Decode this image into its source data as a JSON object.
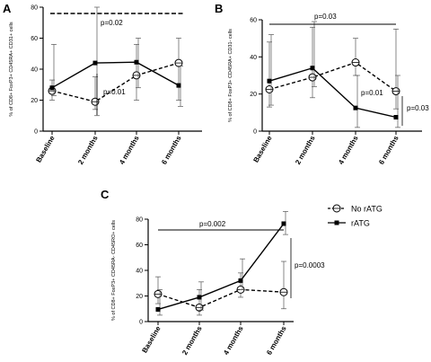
{
  "chart_data": [
    {
      "panel": "A",
      "type": "line",
      "categories": [
        "Baseline",
        "2 months",
        "4 months",
        "6 months"
      ],
      "ylabel": "% of CD8+ FoxP3+ CD45RA+ CD31+ cells",
      "ylim": [
        0,
        80
      ],
      "yticks": [
        0,
        20,
        40,
        60,
        80
      ],
      "series": [
        {
          "name": "No rATG",
          "values": [
            26,
            19,
            36,
            44
          ],
          "err_low": [
            20,
            14,
            20,
            20
          ],
          "err_high": [
            33,
            35,
            56,
            60
          ]
        },
        {
          "name": "rATG",
          "values": [
            28,
            44,
            44.5,
            29.5
          ],
          "err_low": [
            23,
            10,
            28,
            16
          ],
          "err_high": [
            56,
            80,
            60,
            42
          ]
        }
      ],
      "annotations": [
        {
          "text": "p=0.02"
        },
        {
          "text": "p=0.01"
        }
      ]
    },
    {
      "panel": "B",
      "type": "line",
      "categories": [
        "Baseline",
        "2 months",
        "4 months",
        "6 months"
      ],
      "ylabel": "% of CD8+ FoxP3+ CD45RA+ CD31- cells",
      "ylim": [
        0,
        60
      ],
      "yticks": [
        0,
        20,
        40,
        60
      ],
      "series": [
        {
          "name": "No rATG",
          "values": [
            22.5,
            29,
            37,
            21.5
          ],
          "err_low": [
            13,
            18,
            30,
            12
          ],
          "err_high": [
            48,
            56,
            50,
            55
          ]
        },
        {
          "name": "rATG",
          "values": [
            27,
            34,
            12.5,
            7.5
          ],
          "err_low": [
            14,
            24,
            2,
            2
          ],
          "err_high": [
            52,
            59,
            30,
            30
          ]
        }
      ],
      "annotations": [
        {
          "text": "p=0.03"
        },
        {
          "text": "p=0.01"
        },
        {
          "text": "p=0.03"
        }
      ]
    },
    {
      "panel": "C",
      "type": "line",
      "categories": [
        "Baseline",
        "2 months",
        "4 months",
        "6 months"
      ],
      "ylabel": "% of CD8+ FoxP3+ CD45RA- CD45RO+ cells",
      "ylim": [
        0,
        80
      ],
      "yticks": [
        0,
        20,
        40,
        60,
        80
      ],
      "series": [
        {
          "name": "No rATG",
          "values": [
            21.5,
            11,
            25,
            23
          ],
          "err_low": [
            14,
            5,
            19,
            10
          ],
          "err_high": [
            35,
            25,
            38,
            47
          ]
        },
        {
          "name": "rATG",
          "values": [
            9.5,
            19,
            32,
            76.5
          ],
          "err_low": [
            5,
            9,
            25,
            68
          ],
          "err_high": [
            25,
            31,
            49,
            86
          ]
        }
      ],
      "annotations": [
        {
          "text": "p=0.002"
        },
        {
          "text": "p=0.0003"
        }
      ]
    }
  ],
  "legend": {
    "position": "right of panel C",
    "items": [
      {
        "label": "No rATG",
        "marker": "open-circle",
        "line": "dashed"
      },
      {
        "label": "rATG",
        "marker": "filled-square",
        "line": "solid"
      }
    ]
  }
}
